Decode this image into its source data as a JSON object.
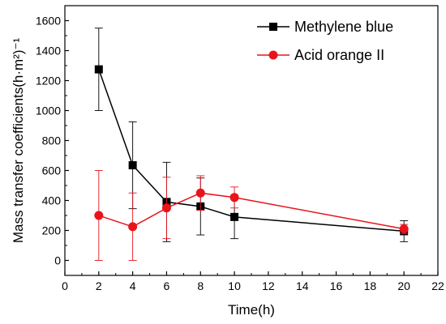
{
  "chart_data": {
    "type": "line",
    "xlabel": "Time(h)",
    "ylabel": "Mass transfer coefficients(h·m²)⁻¹",
    "xlim": [
      0,
      22
    ],
    "ylim": [
      -100,
      1700
    ],
    "xticks": [
      0,
      2,
      4,
      6,
      8,
      10,
      12,
      14,
      16,
      18,
      20,
      22
    ],
    "yticks": [
      0,
      200,
      400,
      600,
      800,
      1000,
      1200,
      1400,
      1600
    ],
    "legend_position": "top-right",
    "grid": false,
    "series": [
      {
        "name": "Methylene blue",
        "color": "#000000",
        "marker": "square",
        "x": [
          2,
          4,
          6,
          8,
          10,
          20
        ],
        "y": [
          1275,
          635,
          390,
          360,
          290,
          195
        ],
        "error": [
          275,
          290,
          265,
          190,
          145,
          70
        ]
      },
      {
        "name": "Acid orange II",
        "color": "#e8141c",
        "marker": "circle",
        "x": [
          2,
          4,
          6,
          8,
          10,
          20
        ],
        "y": [
          300,
          225,
          350,
          450,
          420,
          210
        ],
        "error": [
          300,
          225,
          205,
          115,
          70,
          30
        ]
      }
    ]
  }
}
